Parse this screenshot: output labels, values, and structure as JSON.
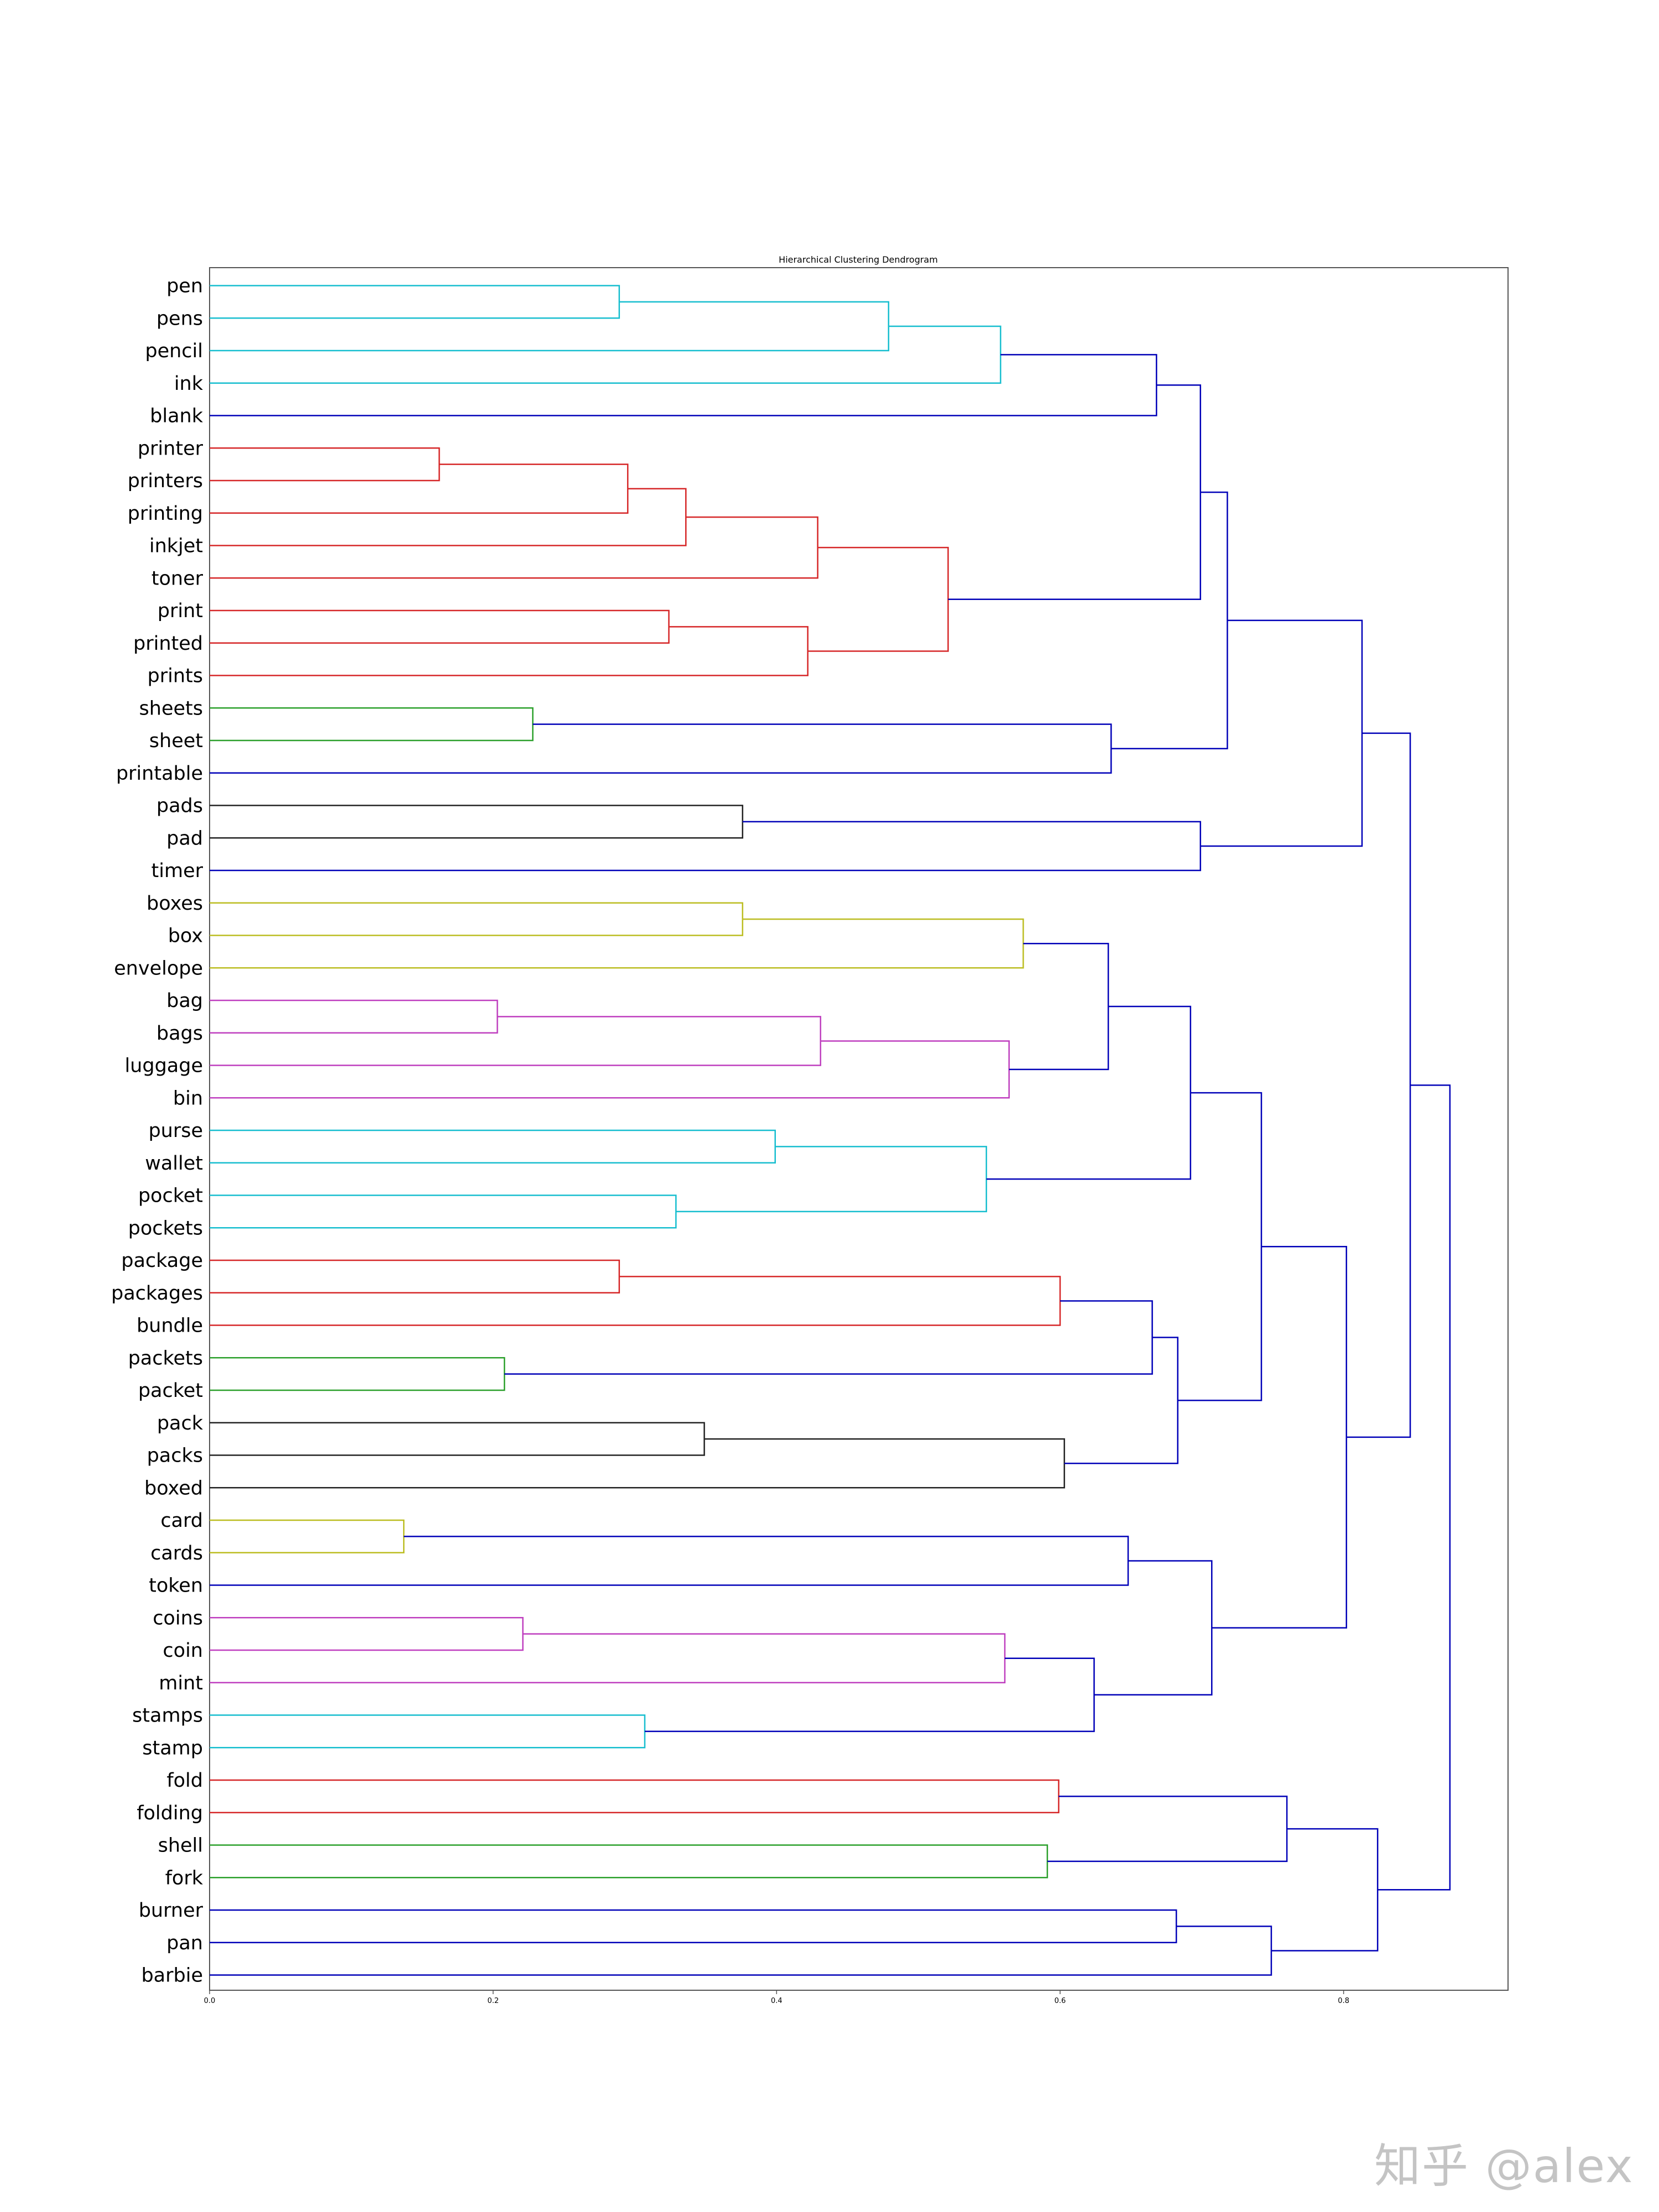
{
  "watermark": "知乎 @alex",
  "chart_data": {
    "type": "dendrogram",
    "title": "Hierarchical Clustering Dendrogram",
    "orientation": "left",
    "xlim": [
      0.0,
      0.916
    ],
    "xticks": [
      "0.0",
      "0.2",
      "0.4",
      "0.6",
      "0.8"
    ],
    "colors": {
      "cyan": "#17becf",
      "red": "#d62728",
      "green": "#2ca02c",
      "black": "#222222",
      "yellow": "#bcbd22",
      "magenta": "#bf3fbf",
      "blue": "#0000b8"
    },
    "leaves": [
      "pen",
      "pens",
      "pencil",
      "ink",
      "blank",
      "printer",
      "printers",
      "printing",
      "inkjet",
      "toner",
      "print",
      "printed",
      "prints",
      "sheets",
      "sheet",
      "printable",
      "pads",
      "pad",
      "timer",
      "boxes",
      "box",
      "envelope",
      "bag",
      "bags",
      "luggage",
      "bin",
      "purse",
      "wallet",
      "pocket",
      "pockets",
      "package",
      "packages",
      "bundle",
      "packets",
      "packet",
      "pack",
      "packs",
      "boxed",
      "card",
      "cards",
      "token",
      "coins",
      "coin",
      "mint",
      "stamps",
      "stamp",
      "fold",
      "folding",
      "shell",
      "fork",
      "burner",
      "pan",
      "barbie"
    ],
    "merges": [
      {
        "a": "L0",
        "b": "L1",
        "height": 0.289,
        "color": "cyan"
      },
      {
        "a": "M0",
        "b": "L2",
        "height": 0.479,
        "color": "cyan"
      },
      {
        "a": "M1",
        "b": "L3",
        "height": 0.558,
        "color": "cyan"
      },
      {
        "a": "M2",
        "b": "L4",
        "height": 0.668,
        "color": "blue"
      },
      {
        "a": "L5",
        "b": "L6",
        "height": 0.162,
        "color": "red"
      },
      {
        "a": "M4",
        "b": "L7",
        "height": 0.295,
        "color": "red"
      },
      {
        "a": "M5",
        "b": "L8",
        "height": 0.336,
        "color": "red"
      },
      {
        "a": "M6",
        "b": "L9",
        "height": 0.429,
        "color": "red"
      },
      {
        "a": "L10",
        "b": "L11",
        "height": 0.324,
        "color": "red"
      },
      {
        "a": "M8",
        "b": "L12",
        "height": 0.422,
        "color": "red"
      },
      {
        "a": "M7",
        "b": "M9",
        "height": 0.521,
        "color": "red"
      },
      {
        "a": "M3",
        "b": "M10",
        "height": 0.699,
        "color": "blue"
      },
      {
        "a": "L13",
        "b": "L14",
        "height": 0.228,
        "color": "green"
      },
      {
        "a": "M12",
        "b": "L15",
        "height": 0.636,
        "color": "blue"
      },
      {
        "a": "M11",
        "b": "M13",
        "height": 0.718,
        "color": "blue"
      },
      {
        "a": "L16",
        "b": "L17",
        "height": 0.376,
        "color": "black"
      },
      {
        "a": "M15",
        "b": "L18",
        "height": 0.699,
        "color": "blue"
      },
      {
        "a": "M14",
        "b": "M16",
        "height": 0.813,
        "color": "blue"
      },
      {
        "a": "L19",
        "b": "L20",
        "height": 0.376,
        "color": "yellow"
      },
      {
        "a": "M18",
        "b": "L21",
        "height": 0.574,
        "color": "yellow"
      },
      {
        "a": "L22",
        "b": "L23",
        "height": 0.203,
        "color": "magenta"
      },
      {
        "a": "M20",
        "b": "L24",
        "height": 0.431,
        "color": "magenta"
      },
      {
        "a": "M21",
        "b": "L25",
        "height": 0.564,
        "color": "magenta"
      },
      {
        "a": "M19",
        "b": "M22",
        "height": 0.634,
        "color": "blue"
      },
      {
        "a": "L26",
        "b": "L27",
        "height": 0.399,
        "color": "cyan"
      },
      {
        "a": "L28",
        "b": "L29",
        "height": 0.329,
        "color": "cyan"
      },
      {
        "a": "M24",
        "b": "M25",
        "height": 0.548,
        "color": "cyan"
      },
      {
        "a": "M23",
        "b": "M26",
        "height": 0.692,
        "color": "blue"
      },
      {
        "a": "L30",
        "b": "L31",
        "height": 0.289,
        "color": "red"
      },
      {
        "a": "M28",
        "b": "L32",
        "height": 0.6,
        "color": "red"
      },
      {
        "a": "L33",
        "b": "L34",
        "height": 0.208,
        "color": "green"
      },
      {
        "a": "M29",
        "b": "M30",
        "height": 0.665,
        "color": "blue"
      },
      {
        "a": "L35",
        "b": "L36",
        "height": 0.349,
        "color": "black"
      },
      {
        "a": "M32",
        "b": "L37",
        "height": 0.603,
        "color": "black"
      },
      {
        "a": "M31",
        "b": "M33",
        "height": 0.683,
        "color": "blue"
      },
      {
        "a": "M27",
        "b": "M34",
        "height": 0.742,
        "color": "blue"
      },
      {
        "a": "L38",
        "b": "L39",
        "height": 0.137,
        "color": "yellow"
      },
      {
        "a": "M36",
        "b": "L40",
        "height": 0.648,
        "color": "blue"
      },
      {
        "a": "L41",
        "b": "L42",
        "height": 0.221,
        "color": "magenta"
      },
      {
        "a": "M38",
        "b": "L43",
        "height": 0.561,
        "color": "magenta"
      },
      {
        "a": "L44",
        "b": "L45",
        "height": 0.307,
        "color": "cyan"
      },
      {
        "a": "M39",
        "b": "M40",
        "height": 0.624,
        "color": "blue"
      },
      {
        "a": "M37",
        "b": "M41",
        "height": 0.707,
        "color": "blue"
      },
      {
        "a": "M35",
        "b": "M42",
        "height": 0.802,
        "color": "blue"
      },
      {
        "a": "M17",
        "b": "M43",
        "height": 0.847,
        "color": "blue"
      },
      {
        "a": "L46",
        "b": "L47",
        "height": 0.599,
        "color": "red"
      },
      {
        "a": "L48",
        "b": "L49",
        "height": 0.591,
        "color": "green"
      },
      {
        "a": "M45",
        "b": "M46",
        "height": 0.76,
        "color": "blue"
      },
      {
        "a": "L50",
        "b": "L51",
        "height": 0.682,
        "color": "blue"
      },
      {
        "a": "M48",
        "b": "L52",
        "height": 0.749,
        "color": "blue"
      },
      {
        "a": "M47",
        "b": "M49",
        "height": 0.824,
        "color": "blue"
      },
      {
        "a": "M44",
        "b": "M50",
        "height": 0.875,
        "color": "blue"
      }
    ]
  }
}
